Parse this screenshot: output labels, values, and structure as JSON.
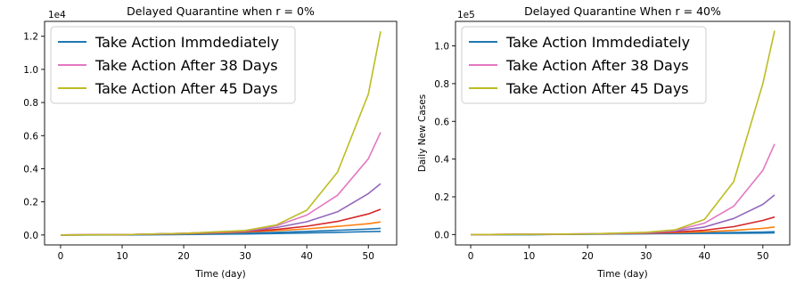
{
  "chart_data": [
    {
      "type": "line",
      "title": "Delayed Quarantine when r = 0%",
      "xlabel": "Time (day)",
      "ylabel": "",
      "y_scale_label": "1e4",
      "y_multiplier": 10000,
      "xlim": [
        -2.6,
        54.6
      ],
      "ylim": [
        -0.06,
        1.29
      ],
      "xticks": [
        0,
        10,
        20,
        30,
        40,
        50
      ],
      "yticks": [
        0.0,
        0.2,
        0.4,
        0.6,
        0.8,
        1.0,
        1.2
      ],
      "ytick_labels": [
        "0.0",
        "0.2",
        "0.4",
        "0.6",
        "0.8",
        "1.0",
        "1.2"
      ],
      "grid": false,
      "legend_position": "upper-left",
      "x": [
        0,
        10,
        20,
        30,
        35,
        40,
        45,
        50,
        52
      ],
      "series": [
        {
          "name": "",
          "color": "#1f77b4",
          "values": [
            0.0,
            0.0,
            0.003,
            0.006,
            0.009,
            0.012,
            0.016,
            0.02,
            0.022
          ]
        },
        {
          "name": "Take Action Immdediately",
          "color": "#1f77b4",
          "values": [
            0.0,
            0.001,
            0.005,
            0.012,
            0.016,
            0.022,
            0.028,
            0.036,
            0.04
          ]
        },
        {
          "name": "",
          "color": "#ff7f0e",
          "values": [
            0.0,
            0.002,
            0.008,
            0.018,
            0.026,
            0.037,
            0.052,
            0.068,
            0.079
          ]
        },
        {
          "name": "",
          "color": "#d62728",
          "values": [
            0.0,
            0.002,
            0.01,
            0.022,
            0.033,
            0.053,
            0.082,
            0.127,
            0.155
          ]
        },
        {
          "name": "",
          "color": "#9467bd",
          "values": [
            0.0,
            0.002,
            0.01,
            0.024,
            0.045,
            0.08,
            0.14,
            0.25,
            0.31
          ]
        },
        {
          "name": "Take Action After 38 Days",
          "color": "#e377c2",
          "values": [
            0.0,
            0.002,
            0.01,
            0.025,
            0.055,
            0.12,
            0.24,
            0.46,
            0.62
          ]
        },
        {
          "name": "Take Action After 45 Days",
          "color": "#bcbd22",
          "values": [
            0.0,
            0.002,
            0.01,
            0.027,
            0.06,
            0.15,
            0.38,
            0.85,
            1.23
          ]
        }
      ]
    },
    {
      "type": "line",
      "title": "Delayed Quarantine When r = 40%",
      "xlabel": "Time (day)",
      "ylabel": "Daily New Cases",
      "y_scale_label": "1e5",
      "y_multiplier": 100000,
      "xlim": [
        -2.6,
        54.6
      ],
      "ylim": [
        -0.055,
        1.13
      ],
      "xticks": [
        0,
        10,
        20,
        30,
        40,
        50
      ],
      "yticks": [
        0.0,
        0.2,
        0.4,
        0.6,
        0.8,
        1.0
      ],
      "ytick_labels": [
        "0.0",
        "0.2",
        "0.4",
        "0.6",
        "0.8",
        "1.0"
      ],
      "grid": false,
      "legend_position": "upper-left",
      "x": [
        0,
        10,
        20,
        30,
        35,
        40,
        45,
        50,
        52
      ],
      "series": [
        {
          "name": "",
          "color": "#1f77b4",
          "values": [
            0.0,
            0.0,
            0.002,
            0.004,
            0.005,
            0.006,
            0.007,
            0.008,
            0.009
          ]
        },
        {
          "name": "Take Action Immdediately",
          "color": "#1f77b4",
          "values": [
            0.0,
            0.0,
            0.002,
            0.005,
            0.007,
            0.009,
            0.011,
            0.013,
            0.015
          ]
        },
        {
          "name": "",
          "color": "#ff7f0e",
          "values": [
            0.0,
            0.001,
            0.003,
            0.007,
            0.01,
            0.015,
            0.022,
            0.033,
            0.04
          ]
        },
        {
          "name": "",
          "color": "#d62728",
          "values": [
            0.0,
            0.001,
            0.003,
            0.008,
            0.013,
            0.023,
            0.042,
            0.075,
            0.093
          ]
        },
        {
          "name": "",
          "color": "#9467bd",
          "values": [
            0.0,
            0.001,
            0.003,
            0.009,
            0.018,
            0.04,
            0.085,
            0.16,
            0.21
          ]
        },
        {
          "name": "Take Action After 38 Days",
          "color": "#e377c2",
          "values": [
            0.0,
            0.001,
            0.003,
            0.01,
            0.022,
            0.06,
            0.15,
            0.34,
            0.48
          ]
        },
        {
          "name": "Take Action After 45 Days",
          "color": "#bcbd22",
          "values": [
            0.0,
            0.001,
            0.003,
            0.012,
            0.025,
            0.08,
            0.28,
            0.8,
            1.08
          ]
        }
      ]
    }
  ]
}
